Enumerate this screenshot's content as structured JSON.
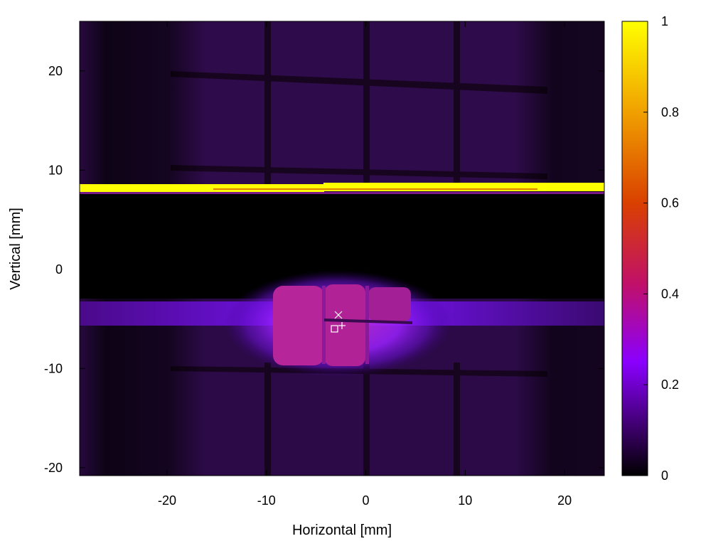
{
  "chart_data": {
    "type": "heatmap",
    "xlabel": "Horizontal [mm]",
    "ylabel": "Vertical [mm]",
    "xlim": [
      -28.8,
      24.0
    ],
    "ylim": [
      -20.8,
      25.0
    ],
    "x_ticks": [
      -20,
      -10,
      0,
      10,
      20
    ],
    "y_ticks": [
      -20,
      -10,
      0,
      10,
      20
    ],
    "x_tick_labels": [
      "-20",
      "-10",
      "0",
      "10",
      "20"
    ],
    "y_tick_labels": [
      "-20",
      "-10",
      "0",
      "10",
      "20"
    ],
    "colorbar": {
      "range": [
        0,
        1
      ],
      "ticks": [
        0,
        0.2,
        0.4,
        0.6,
        0.8,
        1
      ],
      "tick_labels": [
        "0",
        "0.2",
        "0.4",
        "0.6",
        "0.8",
        "1"
      ],
      "colormap": [
        "#000000",
        "#3a0066",
        "#8a00ff",
        "#c0106a",
        "#d94000",
        "#f0a000",
        "#ffff00"
      ]
    },
    "grid_x_lines": [
      -9.7,
      0.2,
      9.3
    ],
    "grid_y_lines": [
      19.5,
      10.0,
      -10.0
    ],
    "features": [
      {
        "name": "saturated stripe",
        "y_range": [
          7.7,
          8.7
        ],
        "value": 1.0
      },
      {
        "name": "dark gap",
        "y_range": [
          -3.0,
          7.6
        ],
        "value": 0.0
      },
      {
        "name": "bright spot",
        "x_range": [
          -9.7,
          5.0
        ],
        "y_range": [
          -9.6,
          -1.7
        ],
        "value": 0.38
      }
    ],
    "markers": [
      {
        "symbol": "×",
        "x": -2.6,
        "y": -4.7
      },
      {
        "symbol": "+",
        "x": -2.4,
        "y": -5.8
      },
      {
        "symbol": "□",
        "x": -3.1,
        "y": -6.0
      }
    ]
  }
}
